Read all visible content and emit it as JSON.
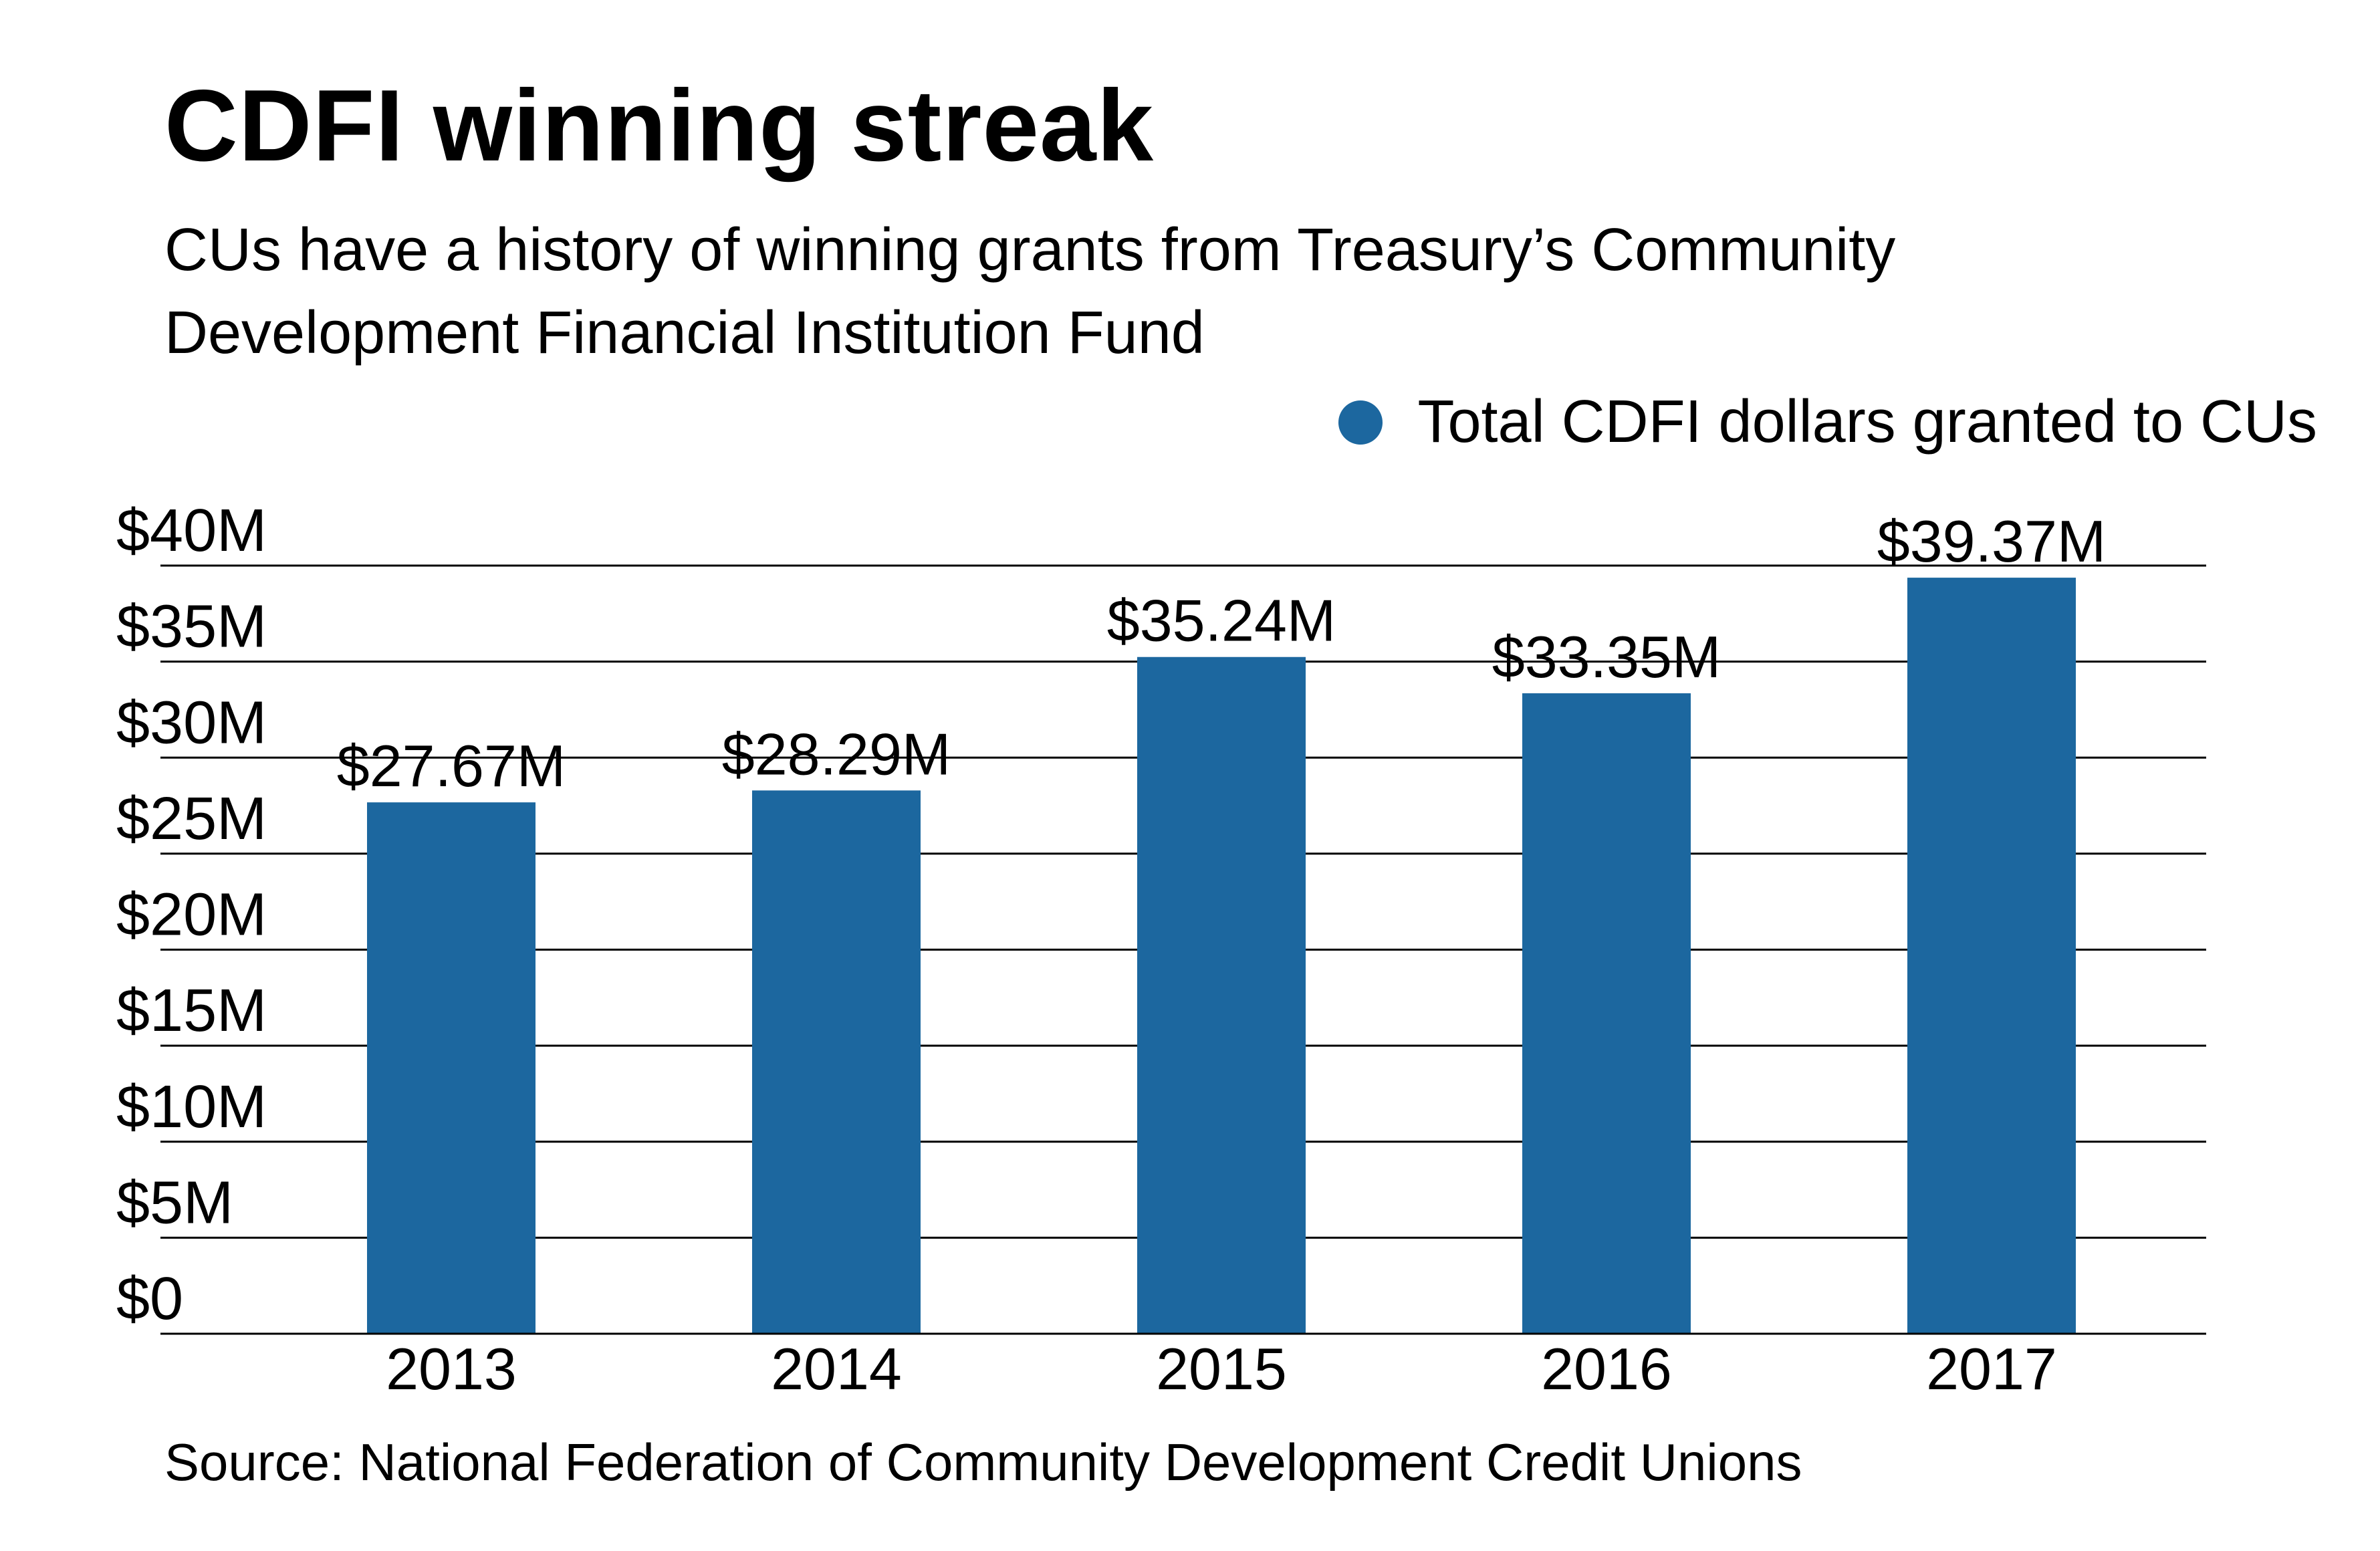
{
  "title": "CDFI winning streak",
  "subtitle": "CUs have a history of winning grants from Treasury’s Community Development Financial Institution Fund",
  "legend_label": "Total CDFI dollars granted to CUs",
  "source": "Source: National Federation of Community Development Credit Unions",
  "colors": {
    "bar": "#1c679f",
    "grid": "#000000"
  },
  "chart_data": {
    "type": "bar",
    "title": "CDFI winning streak",
    "categories": [
      "2013",
      "2014",
      "2015",
      "2016",
      "2017"
    ],
    "series": [
      {
        "name": "Total CDFI dollars granted to CUs",
        "values": [
          27.67,
          28.29,
          35.24,
          33.35,
          39.37
        ],
        "labels": [
          "$27.67M",
          "$28.29M",
          "$35.24M",
          "$33.35M",
          "$39.37M"
        ]
      }
    ],
    "ylim": [
      0,
      40
    ],
    "yticks": [
      0,
      5,
      10,
      15,
      20,
      25,
      30,
      35,
      40
    ],
    "ytick_labels": [
      "$0",
      "$5M",
      "$10M",
      "$15M",
      "$20M",
      "$25M",
      "$30M",
      "$35M",
      "$40M"
    ],
    "grid": true,
    "legend_position": "top-right",
    "xlabel": "",
    "ylabel": ""
  }
}
